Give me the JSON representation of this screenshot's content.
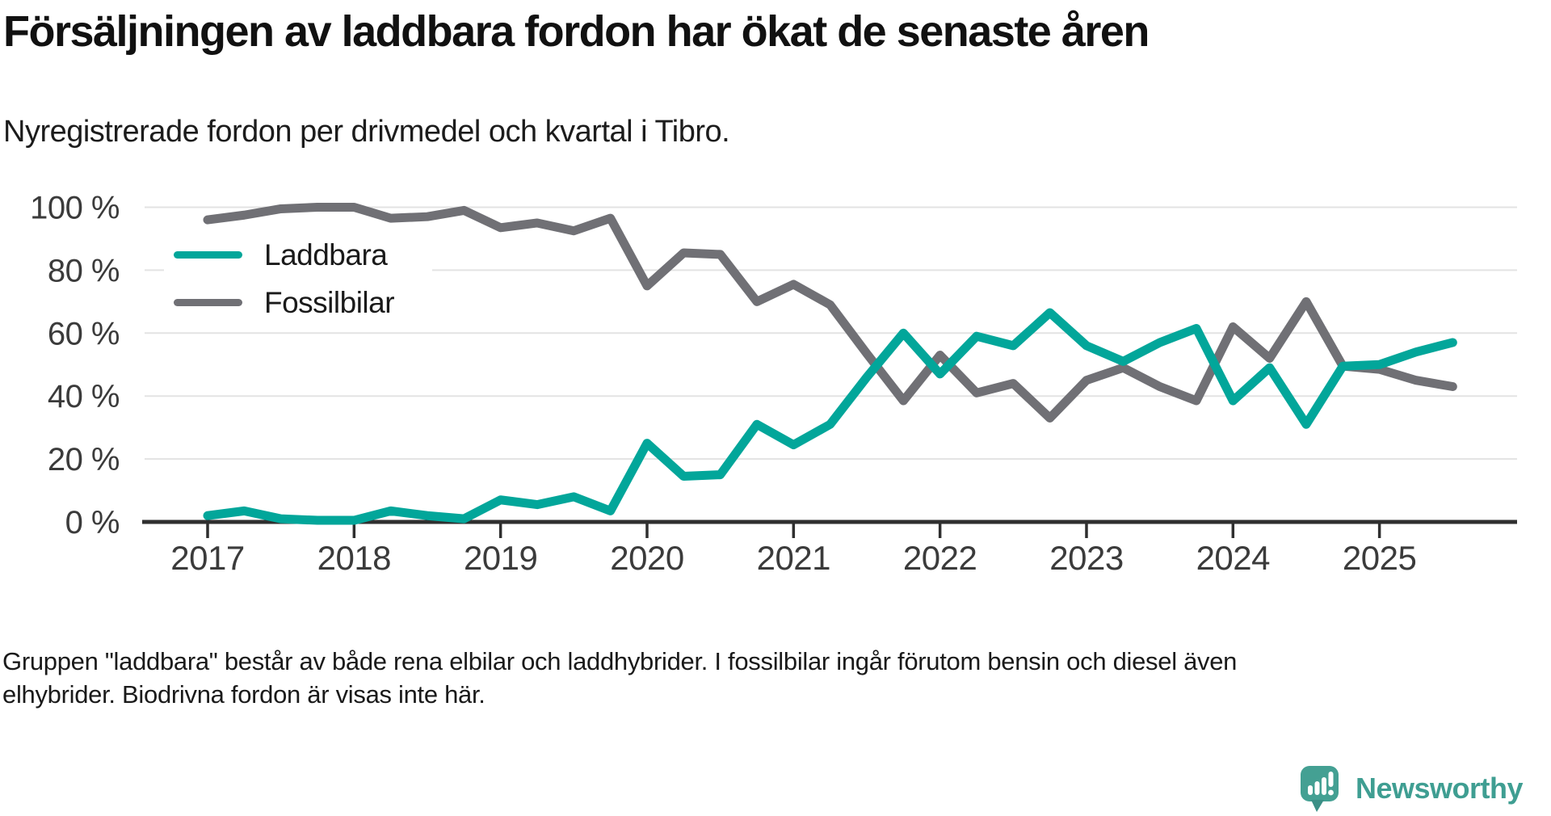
{
  "header": {
    "title": "Försäljningen av laddbara fordon har ökat de senaste åren",
    "subtitle": "Nyregistrerade fordon per drivmedel och kvartal i Tibro."
  },
  "chart_data": {
    "type": "line",
    "unit": "percent share of new registrations",
    "x_start": "2017-Q1",
    "x_interval": "quarter",
    "x_tick_labels": [
      "2017",
      "2018",
      "2019",
      "2020",
      "2021",
      "2022",
      "2023",
      "2024",
      "2025"
    ],
    "y_tick_values": [
      0,
      20,
      40,
      60,
      80,
      100
    ],
    "y_tick_labels": [
      "0 %",
      "20 %",
      "40 %",
      "60 %",
      "80 %",
      "100 %"
    ],
    "ylim": [
      0,
      100
    ],
    "grid": "horizontal",
    "legend_position": "inside-top-left",
    "series": [
      {
        "name": "Laddbara",
        "color": "#02a69a",
        "values": [
          2,
          3.5,
          1,
          0.5,
          0.5,
          3.5,
          2,
          1,
          7,
          5.5,
          8,
          3.5,
          25,
          14.5,
          15,
          31,
          24.5,
          31,
          46,
          60,
          47,
          59,
          56,
          66.5,
          56,
          51,
          57,
          61.5,
          38.5,
          49,
          31,
          49.5,
          50,
          54,
          57
        ]
      },
      {
        "name": "Fossilbilar",
        "color": "#707075",
        "values": [
          96,
          97.5,
          99.5,
          100,
          100,
          96.5,
          97,
          99,
          93.5,
          95,
          92.5,
          96.5,
          75,
          85.5,
          85,
          70,
          75.5,
          69,
          53.5,
          38.5,
          53,
          41,
          44,
          33,
          45,
          49,
          43,
          38.5,
          62,
          52,
          70,
          49.5,
          48.5,
          45,
          43
        ]
      }
    ]
  },
  "footer": {
    "line1": "Gruppen \"laddbara\" består av både rena elbilar och laddhybrider. I fossilbilar ingår förutom bensin och diesel även",
    "line2": "elhybrider. Biodrivna fordon är visas inte här."
  },
  "branding": {
    "name": "Newsworthy",
    "logo_icon": "speech-bubble-bar-chart-exclamation"
  },
  "colors": {
    "accent_teal": "#02a69a",
    "neutral_gray": "#707075",
    "axis": "#2f2f2f",
    "gridline": "#e3e3e3",
    "logo_teal": "#44a093"
  }
}
